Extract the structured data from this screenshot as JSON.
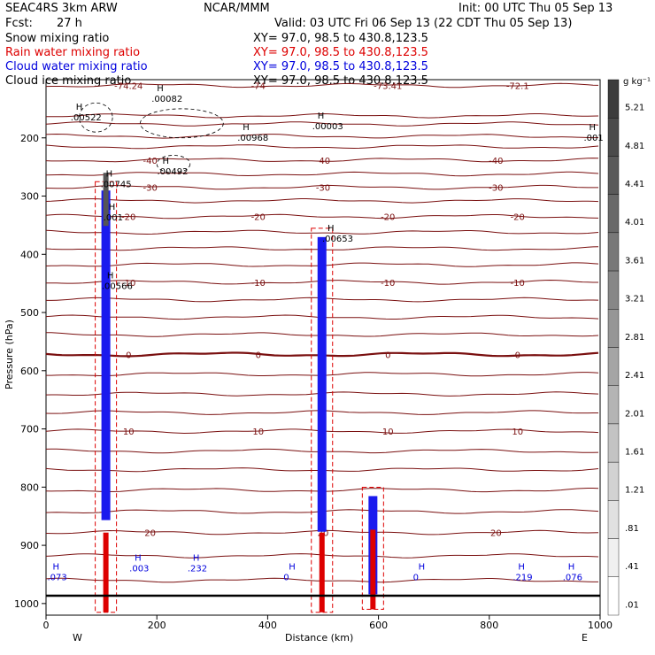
{
  "header": {
    "model": "SEAC4RS   3km ARW",
    "org": "NCAR/MMM",
    "init": "Init: 00 UTC Thu 05 Sep 13",
    "fcst_label": "Fcst:",
    "fcst_value": "27 h",
    "valid": "Valid: 03 UTC Fri 06 Sep 13 (22 CDT Thu 05 Sep 13)"
  },
  "legend_rows": [
    {
      "field": "Snow mixing ratio",
      "xy": "XY=   97.0, 98.5 to 430.8,123.5",
      "color": "#000000"
    },
    {
      "field": "Rain water mixing ratio",
      "xy": "XY=   97.0, 98.5 to 430.8,123.5",
      "color": "#dd0000"
    },
    {
      "field": "Cloud water mixing ratio",
      "xy": "XY=   97.0, 98.5 to 430.8,123.5",
      "color": "#0000dd"
    },
    {
      "field": "Cloud ice mixing ratio",
      "xy": "XY=   97.0, 98.5 to 430.8,123.5",
      "color": "#000000"
    }
  ],
  "chart_data": {
    "type": "cross-section",
    "xlabel": "Distance (km)",
    "ylabel": "Pressure (hPa)",
    "xlim": [
      0,
      1000
    ],
    "ylim": [
      1020,
      100
    ],
    "x_ticks": [
      0,
      200,
      400,
      600,
      800,
      1000
    ],
    "y_ticks": [
      200,
      300,
      400,
      500,
      600,
      700,
      800,
      900,
      1000
    ],
    "x_end_labels": {
      "left": "W",
      "right": "E"
    },
    "colorbar": {
      "unit": "g kg⁻¹",
      "labels": [
        "5.21",
        "4.81",
        "4.41",
        "4.01",
        "3.61",
        "3.21",
        "2.81",
        "2.41",
        "2.01",
        "1.61",
        "1.21",
        ".81",
        ".41",
        ".01"
      ]
    },
    "temperature_contours": [
      {
        "p": 110,
        "labels": [
          "-74.24",
          "-74",
          "-73.41",
          "-72.1"
        ]
      },
      {
        "p": 162,
        "labels": []
      },
      {
        "p": 176,
        "labels": []
      },
      {
        "p": 197,
        "labels": []
      },
      {
        "p": 215,
        "labels": []
      },
      {
        "p": 238,
        "labels": [
          "-40",
          "-40",
          "-40"
        ]
      },
      {
        "p": 262,
        "labels": []
      },
      {
        "p": 285,
        "labels": [
          "-30",
          "-30",
          "-30"
        ]
      },
      {
        "p": 308,
        "labels": []
      },
      {
        "p": 335,
        "labels": [
          "-20",
          "-20",
          "-20",
          "-20"
        ]
      },
      {
        "p": 362,
        "labels": []
      },
      {
        "p": 390,
        "labels": []
      },
      {
        "p": 418,
        "labels": []
      },
      {
        "p": 448,
        "labels": [
          "-10",
          "-10",
          "-10",
          "-10"
        ]
      },
      {
        "p": 478,
        "labels": []
      },
      {
        "p": 508,
        "labels": []
      },
      {
        "p": 538,
        "labels": []
      },
      {
        "p": 572,
        "labels": [
          "0",
          "0",
          "0",
          "0"
        ],
        "bold": true
      },
      {
        "p": 606,
        "labels": []
      },
      {
        "p": 640,
        "labels": []
      },
      {
        "p": 672,
        "labels": []
      },
      {
        "p": 704,
        "labels": [
          "10",
          "10",
          "10",
          "10"
        ]
      },
      {
        "p": 738,
        "labels": []
      },
      {
        "p": 770,
        "labels": []
      },
      {
        "p": 805,
        "labels": []
      },
      {
        "p": 842,
        "labels": []
      },
      {
        "p": 878,
        "labels": [
          "20",
          "20",
          "20"
        ]
      },
      {
        "p": 918,
        "labels": []
      },
      {
        "p": 960,
        "labels": []
      }
    ],
    "maxima_labels": [
      {
        "x": 54,
        "p": 170,
        "text": ".00522"
      },
      {
        "x": 200,
        "p": 138,
        "text": ".00082"
      },
      {
        "x": 355,
        "p": 205,
        "text": ".00968"
      },
      {
        "x": 490,
        "p": 185,
        "text": ".00003"
      },
      {
        "x": 980,
        "p": 205,
        "text": ".001"
      },
      {
        "x": 210,
        "p": 263,
        "text": ".00492"
      },
      {
        "x": 108,
        "p": 285,
        "text": ".00745"
      },
      {
        "x": 113,
        "p": 342,
        "text": ".001"
      },
      {
        "x": 110,
        "p": 460,
        "text": ".00566"
      },
      {
        "x": 508,
        "p": 378,
        "text": ".00653"
      },
      {
        "x": 12,
        "p": 960,
        "text": ".073"
      },
      {
        "x": 160,
        "p": 945,
        "text": ".003"
      },
      {
        "x": 265,
        "p": 945,
        "text": ".232"
      },
      {
        "x": 438,
        "p": 960,
        "text": "0"
      },
      {
        "x": 672,
        "p": 960,
        "text": "0"
      },
      {
        "x": 852,
        "p": 960,
        "text": ".219"
      },
      {
        "x": 942,
        "p": 960,
        "text": ".076"
      }
    ],
    "convective_columns": [
      {
        "x": 108,
        "p_top": 260,
        "p_bottom": 1015
      },
      {
        "x": 498,
        "p_top": 340,
        "p_bottom": 1015
      },
      {
        "x": 590,
        "p_top": 785,
        "p_bottom": 1010
      }
    ]
  }
}
